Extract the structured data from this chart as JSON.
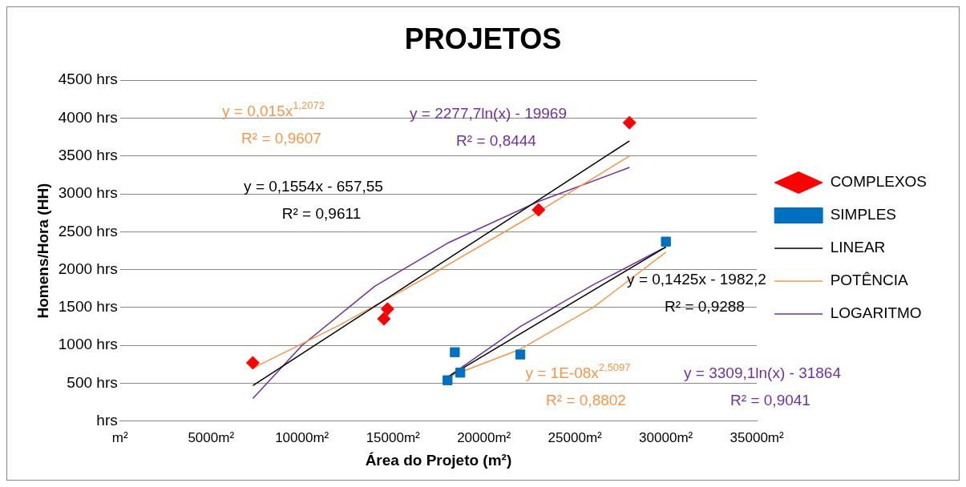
{
  "chart_data": {
    "type": "scatter",
    "title": "PROJETOS",
    "xlabel": "Área do Projeto (m²)",
    "ylabel": "Homens/Hora (HH)",
    "xlim": [
      0,
      35000
    ],
    "xticks": [
      {
        "value": 0,
        "label": "m²"
      },
      {
        "value": 5000,
        "label": "5000m²"
      },
      {
        "value": 10000,
        "label": "10000m²"
      },
      {
        "value": 15000,
        "label": "15000m²"
      },
      {
        "value": 20000,
        "label": "20000m²"
      },
      {
        "value": 25000,
        "label": "25000m²"
      },
      {
        "value": 30000,
        "label": "30000m²"
      },
      {
        "value": 35000,
        "label": "35000m²"
      }
    ],
    "ylim": [
      0,
      4500
    ],
    "yticks": [
      {
        "value": 0,
        "label": "hrs"
      },
      {
        "value": 500,
        "label": "500 hrs"
      },
      {
        "value": 1000,
        "label": "1000 hrs"
      },
      {
        "value": 1500,
        "label": "1500 hrs"
      },
      {
        "value": 2000,
        "label": "2000 hrs"
      },
      {
        "value": 2500,
        "label": "2500 hrs"
      },
      {
        "value": 3000,
        "label": "3000 hrs"
      },
      {
        "value": 3500,
        "label": "3500 hrs"
      },
      {
        "value": 4000,
        "label": "4000 hrs"
      },
      {
        "value": 4500,
        "label": "4500 hrs"
      }
    ],
    "grid": "y",
    "legend": "right",
    "series": [
      {
        "name": "COMPLEXOS",
        "marker": "diamond",
        "color": "#ff0000",
        "x": [
          7300,
          14500,
          14700,
          23000,
          28000
        ],
        "values": [
          770,
          1350,
          1480,
          2790,
          3940
        ]
      },
      {
        "name": "SIMPLES",
        "marker": "square",
        "color": "#0070c0",
        "x": [
          18000,
          18400,
          18700,
          22000,
          30000
        ],
        "values": [
          540,
          910,
          640,
          880,
          2370
        ]
      },
      {
        "name": "LINEAR",
        "type": "line",
        "marker": "none",
        "color": "#000000",
        "x": [
          7300,
          28000
        ],
        "values": [
          470,
          3700
        ]
      },
      {
        "name": "POTÊNCIA",
        "type": "line",
        "marker": "none",
        "color": "#f79646",
        "x": [
          7300,
          12000,
          17000,
          22000,
          28000
        ],
        "values": [
          700,
          1260,
          1920,
          2620,
          3500
        ]
      },
      {
        "name": "LOGARITMO",
        "type": "line",
        "marker": "none",
        "color": "#7030a0",
        "x": [
          7300,
          10000,
          14000,
          18000,
          23000,
          28000
        ],
        "values": [
          300,
          1000,
          1780,
          2350,
          2900,
          3350
        ]
      },
      {
        "type": "line",
        "marker": "none",
        "color": "#000000",
        "x": [
          18000,
          30000
        ],
        "values": [
          580,
          2300
        ]
      },
      {
        "type": "line",
        "marker": "none",
        "color": "#f79646",
        "x": [
          18000,
          22000,
          26000,
          30000
        ],
        "values": [
          580,
          950,
          1500,
          2230
        ]
      },
      {
        "type": "line",
        "marker": "none",
        "color": "#7030a0",
        "x": [
          18000,
          22000,
          26000,
          30000
        ],
        "values": [
          580,
          1250,
          1800,
          2300
        ]
      }
    ],
    "annotations": [
      "y = 0,1554x - 657,55\nR² = 0,9611",
      "y = 0,015x$^{1,2072}$\nR² = 0,9607",
      "y = 2277,7ln(x) - 19969\nR² = 0,8444",
      "y = 0,1425x - 1982,2\nR² = 0,9288",
      "y = 1E-08x$^{2,5097}$\nR² = 0,8802",
      "y = 3309,1ln(x) - 31864\nR² = 0,9041"
    ]
  }
}
